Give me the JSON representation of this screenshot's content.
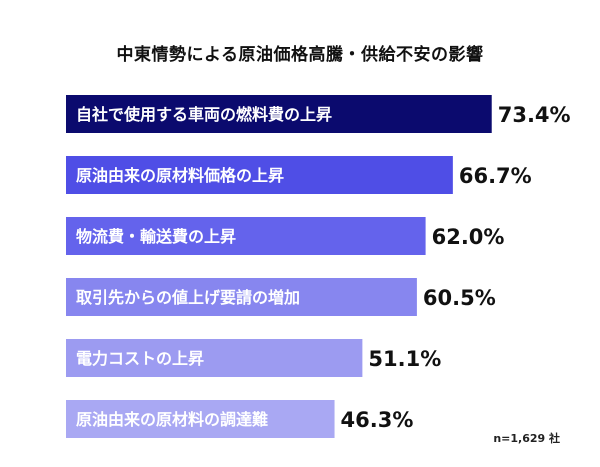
{
  "chart_data": {
    "type": "bar",
    "orientation": "horizontal",
    "title": "中東情勢による原油価格高騰・供給不安の影響",
    "categories": [
      "自社で使用する車両の燃料費の上昇",
      "原油由来の原材料価格の上昇",
      "物流費・輸送費の上昇",
      "取引先からの値上げ要請の増加",
      "電力コストの上昇",
      "原油由来の原材料の調達難"
    ],
    "values": [
      73.4,
      66.7,
      62.0,
      60.5,
      51.1,
      46.3
    ],
    "value_labels": [
      "73.4%",
      "66.7%",
      "62.0%",
      "60.5%",
      "51.1%",
      "46.3%"
    ],
    "colors": [
      "#0b0a6e",
      "#4f4ee6",
      "#6463ec",
      "#8786ef",
      "#9c9bf1",
      "#a9a8f3"
    ],
    "xlim": [
      0,
      100
    ],
    "grid": false,
    "legend": "none",
    "note": "n=1,629 社"
  }
}
